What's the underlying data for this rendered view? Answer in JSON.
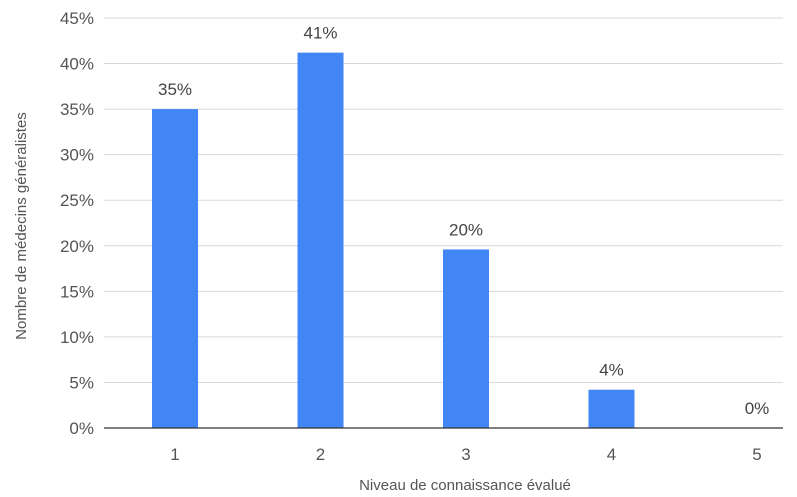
{
  "chart_data": {
    "type": "bar",
    "categories": [
      "1",
      "2",
      "3",
      "4",
      "5"
    ],
    "values": [
      35,
      41.2,
      19.6,
      4.2,
      0
    ],
    "data_labels": [
      "35%",
      "41%",
      "20%",
      "4%",
      "0%"
    ],
    "ylim": [
      0,
      45
    ],
    "y_ticks": [
      0,
      5,
      10,
      15,
      20,
      25,
      30,
      35,
      40,
      45
    ],
    "y_tick_labels": [
      "0%",
      "5%",
      "10%",
      "15%",
      "20%",
      "25%",
      "30%",
      "35%",
      "40%",
      "45%"
    ],
    "xlabel": "Niveau de connaissance évalué",
    "ylabel": "Nombre de médecins généralistes",
    "grid": true,
    "legend": "none",
    "bar_color": "#4285f4"
  }
}
